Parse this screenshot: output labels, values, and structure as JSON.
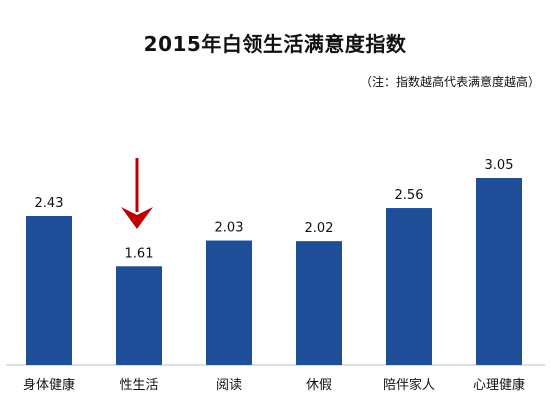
{
  "chart_data": {
    "type": "bar",
    "title": "2015年白领生活满意度指数",
    "subtitle": "（注：指数越高代表满意度越高）",
    "categories": [
      "身体健康",
      "性生活",
      "阅读",
      "休假",
      "陪伴家人",
      "心理健康"
    ],
    "values": [
      2.43,
      1.61,
      2.03,
      2.02,
      2.56,
      3.05
    ],
    "value_labels": [
      "2.43",
      "1.61",
      "2.03",
      "2.02",
      "2.56",
      "3.05"
    ],
    "ylim": [
      0,
      3.05
    ],
    "grid": false,
    "bar_color": "#1F4E99",
    "annotation": {
      "type": "arrow-down",
      "target_category_index": 1,
      "color": "#C00000"
    }
  }
}
